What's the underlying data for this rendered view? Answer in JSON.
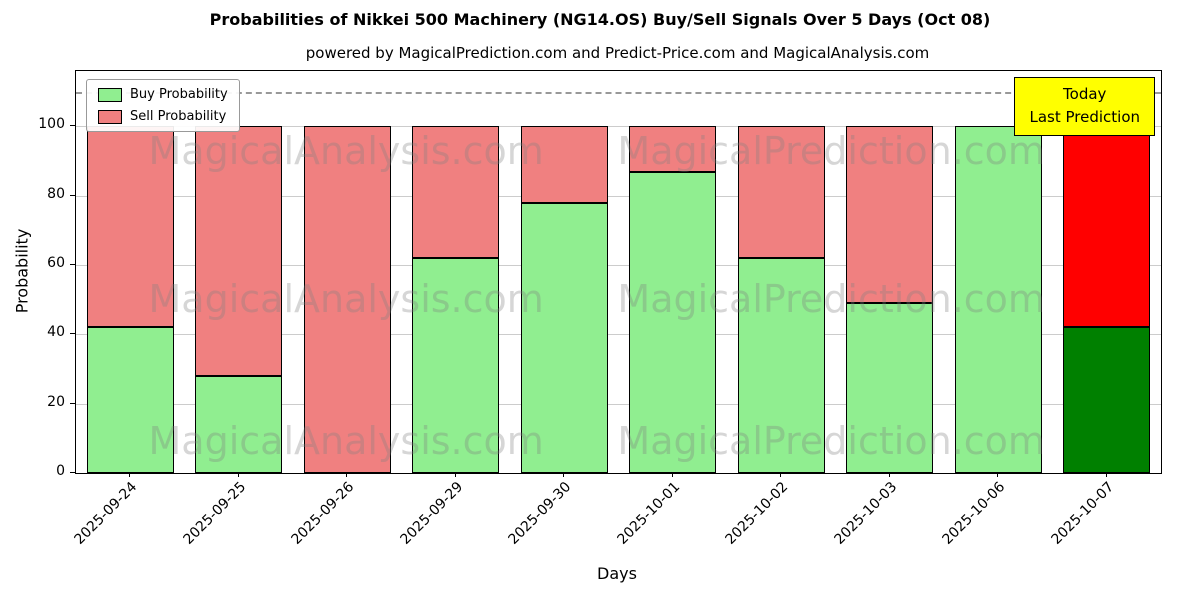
{
  "title": "Probabilities of Nikkei 500 Machinery (NG14.OS) Buy/Sell Signals Over 5 Days (Oct 08)",
  "subtitle": "powered by MagicalPrediction.com and Predict-Price.com and MagicalAnalysis.com",
  "annotation": {
    "line1": "Today",
    "line2": "Last Prediction",
    "bg": "#ffff00",
    "border": "#000000"
  },
  "legend": {
    "items": [
      {
        "label": "Buy Probability",
        "color": "#90ee90"
      },
      {
        "label": "Sell Probability",
        "color": "#f08080"
      }
    ]
  },
  "watermarks": {
    "left_text": "MagicalAnalysis.com",
    "right_text": "MagicalPrediction.com"
  },
  "chart_data": {
    "type": "bar",
    "stacked": true,
    "title": "Probabilities of Nikkei 500 Machinery (NG14.OS) Buy/Sell Signals Over 5 Days (Oct 08)",
    "xlabel": "Days",
    "ylabel": "Probability",
    "categories": [
      "2025-09-24",
      "2025-09-25",
      "2025-09-26",
      "2025-09-29",
      "2025-09-30",
      "2025-10-01",
      "2025-10-02",
      "2025-10-03",
      "2025-10-06",
      "2025-10-07"
    ],
    "series": [
      {
        "name": "Buy Probability",
        "values": [
          42,
          28,
          0,
          62,
          78,
          87,
          62,
          49,
          100,
          42
        ]
      },
      {
        "name": "Sell Probability",
        "values": [
          58,
          72,
          100,
          38,
          22,
          13,
          38,
          51,
          0,
          58
        ]
      }
    ],
    "colors": {
      "buy": "#90ee90",
      "sell": "#f08080",
      "buy_last": "#008000",
      "sell_last": "#ff0000"
    },
    "yticks": [
      0,
      20,
      40,
      60,
      80,
      100
    ],
    "ylim": [
      0,
      116
    ],
    "hline": 110,
    "grid": true,
    "legend_position": "upper-left"
  }
}
